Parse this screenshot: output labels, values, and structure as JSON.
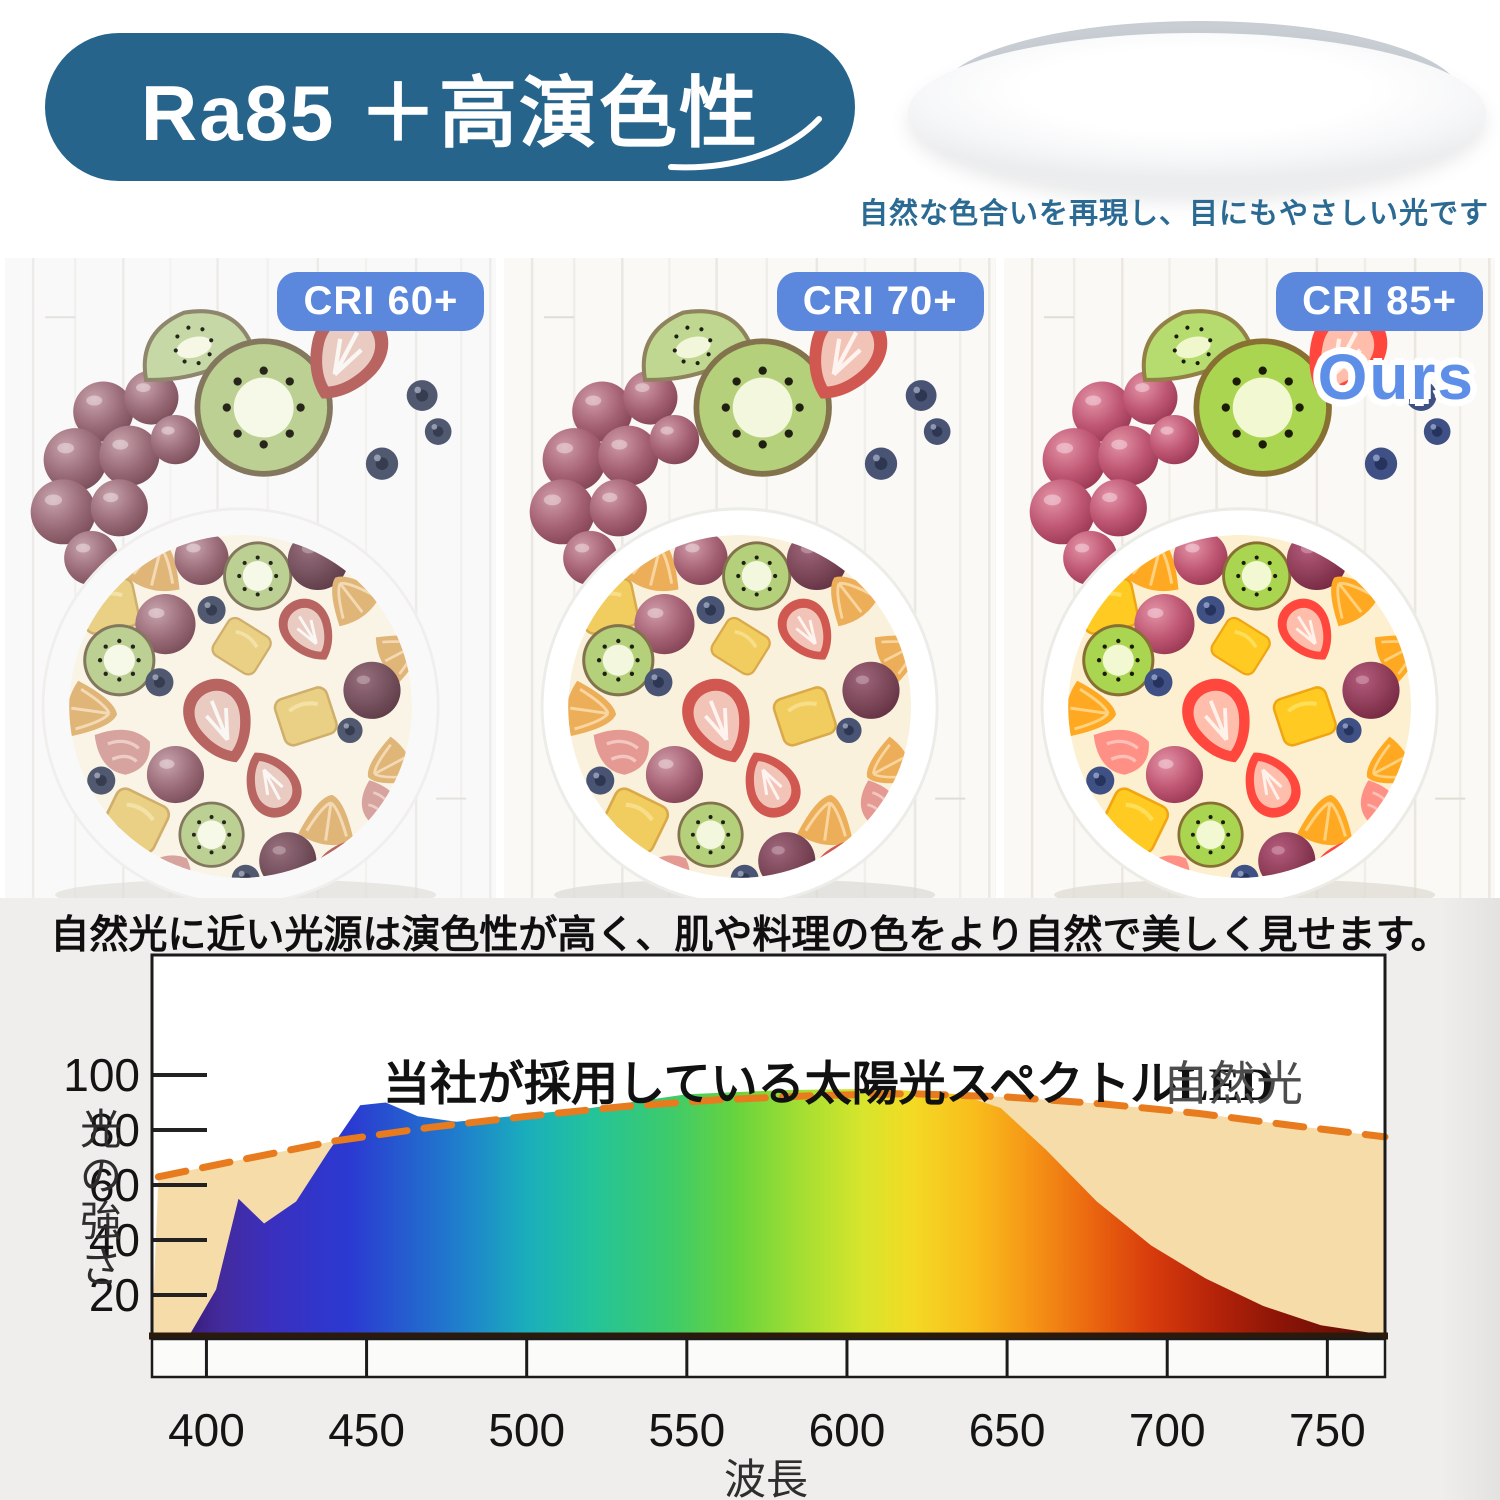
{
  "header": {
    "badge": "Ra85 ＋高演色性",
    "subtitle": "自然な色合いを再現し、目にもやさしい光です",
    "colors": {
      "badge_bg": "#26648c",
      "subtitle": "#2b6b93"
    }
  },
  "comparison": {
    "panels": [
      {
        "label": "CRI 60+"
      },
      {
        "label": "CRI 70+"
      },
      {
        "label": "CRI 85+",
        "tag": "Ours"
      }
    ],
    "pill_bg": "#5b87dc",
    "ours_color": "#5e8fe8"
  },
  "caption": "自然光に近い光源は演色性が高く、肌や料理の色をより自然で美しく見せます。",
  "chart_data": {
    "type": "area",
    "title": "当社が採用している太陽光スペクトルLED",
    "legend_natural": "自然光",
    "xlabel": "波長",
    "ylabel": "光の強さ",
    "ylabel_chars": [
      "光",
      "の",
      "強",
      "さ"
    ],
    "xticks": [
      400,
      450,
      500,
      550,
      600,
      650,
      700,
      750
    ],
    "yticks": [
      100,
      80,
      60,
      40,
      20
    ],
    "xlim": [
      383,
      768
    ],
    "ylim": [
      0,
      108
    ],
    "grid": false,
    "legend_position": "top-right-inside",
    "series": [
      {
        "name": "太陽光スペクトルLED",
        "style": "filled-spectrum-gradient",
        "points": [
          [
            385,
            2
          ],
          [
            395,
            6
          ],
          [
            403,
            22
          ],
          [
            410,
            55
          ],
          [
            418,
            46
          ],
          [
            428,
            54
          ],
          [
            438,
            72
          ],
          [
            448,
            89
          ],
          [
            456,
            90
          ],
          [
            466,
            85
          ],
          [
            478,
            83
          ],
          [
            495,
            85
          ],
          [
            520,
            88
          ],
          [
            550,
            93
          ],
          [
            580,
            94.5
          ],
          [
            610,
            95
          ],
          [
            635,
            93
          ],
          [
            648,
            88
          ],
          [
            662,
            73
          ],
          [
            678,
            54
          ],
          [
            695,
            38
          ],
          [
            712,
            26
          ],
          [
            730,
            16
          ],
          [
            748,
            9
          ],
          [
            768,
            5
          ]
        ]
      },
      {
        "name": "自然光",
        "style": "dashed-orange",
        "points": [
          [
            385,
            63
          ],
          [
            410,
            69
          ],
          [
            440,
            76
          ],
          [
            470,
            81
          ],
          [
            500,
            85
          ],
          [
            530,
            88.5
          ],
          [
            560,
            91
          ],
          [
            590,
            92.5
          ],
          [
            620,
            93.2
          ],
          [
            650,
            92
          ],
          [
            680,
            89.5
          ],
          [
            710,
            86
          ],
          [
            740,
            81.5
          ],
          [
            768,
            77.5
          ]
        ]
      }
    ],
    "colors": {
      "natural_dash": "#e77b1d",
      "natural_fill": "#f6dca8",
      "plot_bg": "#ffffff",
      "section_bg": "#efeeec",
      "spectrum_colors": [
        "#2e0f55",
        "#3a2fbe",
        "#2b3ad2",
        "#1f7fcc",
        "#1aaebc",
        "#23c39b",
        "#67d33e",
        "#a2de33",
        "#d8e52c",
        "#f3da24",
        "#f9bc1c",
        "#ec6a10",
        "#d83c0c",
        "#8c1507",
        "#570b05"
      ]
    }
  }
}
